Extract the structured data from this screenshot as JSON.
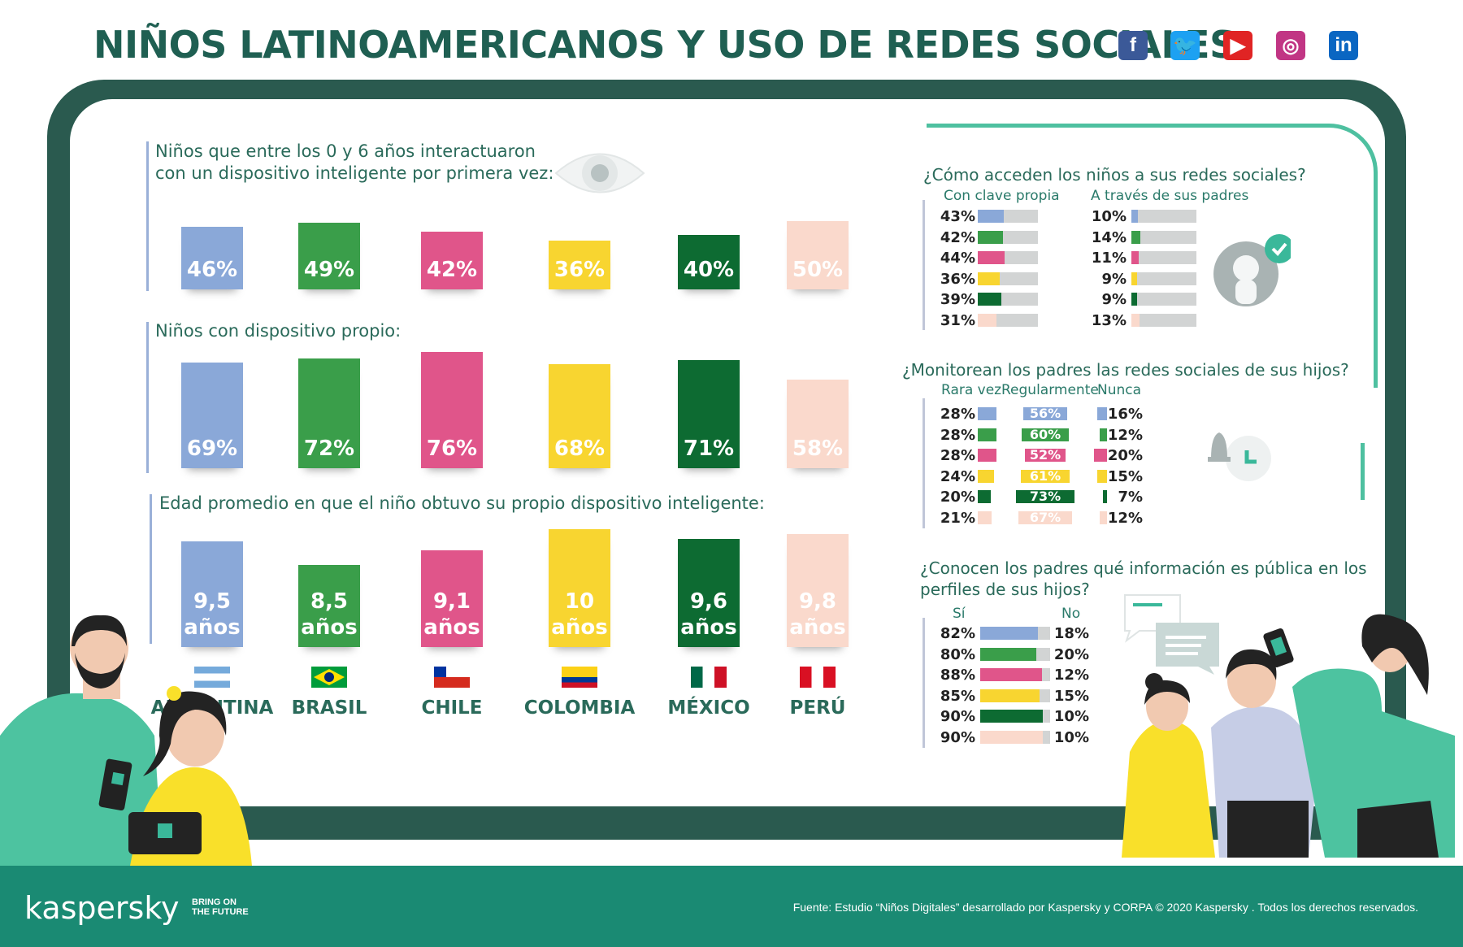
{
  "header": {
    "title": "NIÑOS LATINOAMERICANOS Y USO DE REDES SOCIALES",
    "social": [
      {
        "icon": "facebook-icon",
        "glyph": "f",
        "color": "#3b5998"
      },
      {
        "icon": "twitter-icon",
        "glyph": "🐦",
        "color": "#1da1f2"
      },
      {
        "icon": "youtube-icon",
        "glyph": "▶",
        "color": "#e02424"
      },
      {
        "icon": "instagram-icon",
        "glyph": "◎",
        "color": "#c13584"
      },
      {
        "icon": "linkedin-icon",
        "glyph": "in",
        "color": "#0a66c2"
      }
    ]
  },
  "countries": [
    "ARGENTINA",
    "BRASIL",
    "CHILE",
    "COLOMBIA",
    "MÉXICO",
    "PERÚ"
  ],
  "colors": [
    "#8aa8d8",
    "#3a9e4a",
    "#e0558a",
    "#f8d530",
    "#0d6b32",
    "#fad9cc"
  ],
  "chart_data": [
    {
      "type": "bar",
      "title": "Niños que entre los 0 y 6 años interactuaron con un dispositivo inteligente por primera vez:",
      "categories": [
        "ARGENTINA",
        "BRASIL",
        "CHILE",
        "COLOMBIA",
        "MÉXICO",
        "PERÚ"
      ],
      "values": [
        46,
        49,
        42,
        36,
        40,
        50
      ],
      "labels": [
        "46%",
        "49%",
        "42%",
        "36%",
        "40%",
        "50%"
      ]
    },
    {
      "type": "bar",
      "title": "Niños con dispositivo propio:",
      "categories": [
        "ARGENTINA",
        "BRASIL",
        "CHILE",
        "COLOMBIA",
        "MÉXICO",
        "PERÚ"
      ],
      "values": [
        69,
        72,
        76,
        68,
        71,
        58
      ],
      "labels": [
        "69%",
        "72%",
        "76%",
        "68%",
        "71%",
        "58%"
      ]
    },
    {
      "type": "bar",
      "title": "Edad promedio en que el niño obtuvo su propio dispositivo inteligente:",
      "categories": [
        "ARGENTINA",
        "BRASIL",
        "CHILE",
        "COLOMBIA",
        "MÉXICO",
        "PERÚ"
      ],
      "values": [
        9.5,
        8.5,
        9.1,
        10,
        9.6,
        9.8
      ],
      "labels": [
        "9,5\naños",
        "8,5\naños",
        "9,1\naños",
        "10\naños",
        "9,6\naños",
        "9,8\naños"
      ]
    },
    {
      "type": "bar",
      "title": "¿Cómo acceden los niños a sus redes sociales?",
      "categories": [
        "ARGENTINA",
        "BRASIL",
        "CHILE",
        "COLOMBIA",
        "MÉXICO",
        "PERÚ"
      ],
      "series": [
        {
          "name": "Con clave propia",
          "values": [
            43,
            42,
            44,
            36,
            39,
            31
          ]
        },
        {
          "name": "A través de sus padres",
          "values": [
            10,
            14,
            11,
            9,
            9,
            13
          ]
        }
      ]
    },
    {
      "type": "bar",
      "title": "¿Monitorean los padres las redes sociales de sus hijos?",
      "categories": [
        "ARGENTINA",
        "BRASIL",
        "CHILE",
        "COLOMBIA",
        "MÉXICO",
        "PERÚ"
      ],
      "series": [
        {
          "name": "Rara vez",
          "values": [
            28,
            28,
            28,
            24,
            20,
            21
          ]
        },
        {
          "name": "Regularmente",
          "values": [
            56,
            60,
            52,
            61,
            73,
            67
          ]
        },
        {
          "name": "Nunca",
          "values": [
            16,
            12,
            20,
            15,
            7,
            12
          ]
        }
      ]
    },
    {
      "type": "bar",
      "title": "¿Conocen los padres qué información es pública en los perfiles de sus hijos?",
      "categories": [
        "ARGENTINA",
        "BRASIL",
        "CHILE",
        "COLOMBIA",
        "MÉXICO",
        "PERÚ"
      ],
      "series": [
        {
          "name": "Sí",
          "values": [
            82,
            80,
            88,
            85,
            90,
            90
          ]
        },
        {
          "name": "No",
          "values": [
            18,
            20,
            12,
            15,
            10,
            10
          ]
        }
      ]
    }
  ],
  "right": {
    "access_title": "¿Cómo acceden los niños a sus redes sociales?",
    "access_col1": "Con clave propia",
    "access_col2": "A través de sus padres",
    "monitor_title": "¿Monitorean los padres las redes sociales de sus hijos?",
    "monitor_col1": "Rara vez",
    "monitor_col2": "Regularmente",
    "monitor_col3": "Nunca",
    "public_title_1": "¿Conocen los padres qué información es pública en los",
    "public_title_2": "perfiles de sus hijos?",
    "public_col1": "Sí",
    "public_col2": "No"
  },
  "left": {
    "q1_line1": "Niños que entre los 0 y 6 años interactuaron",
    "q1_line2": "con un dispositivo inteligente por primera vez:",
    "q2": "Niños con dispositivo propio:",
    "q3": "Edad promedio en que el niño obtuvo su propio dispositivo inteligente:"
  },
  "footer": {
    "logo": "kaspersky",
    "tagline_1": "BRING ON",
    "tagline_2": "THE FUTURE",
    "source": "Fuente: Estudio “Niños Digitales” desarrollado por Kaspersky y CORPA  © 2020 Kaspersky . Todos los derechos reservados."
  }
}
